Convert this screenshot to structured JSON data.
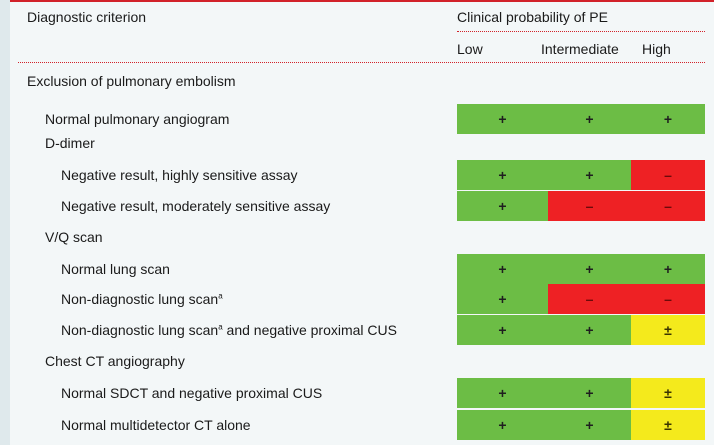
{
  "header": {
    "criterion_label": "Diagnostic criterion",
    "probability_label": "Clinical probability of PE",
    "columns": [
      "Low",
      "Intermediate",
      "High"
    ]
  },
  "colors": {
    "positive": "#6cbd45",
    "negative": "#ee2124",
    "equivocal": "#f4ea1c",
    "rule": "#d2222a"
  },
  "rows": [
    {
      "label": "Exclusion of pulmonary embolism",
      "indent": 0,
      "kind": "section"
    },
    {
      "label": "Normal pulmonary angiogram",
      "indent": 1,
      "kind": "data",
      "values": [
        "+",
        "+",
        "+"
      ],
      "colors": [
        "green",
        "green",
        "green"
      ]
    },
    {
      "label": "D-dimer",
      "indent": 1,
      "kind": "subsection"
    },
    {
      "label": "Negative result, highly sensitive assay",
      "indent": 2,
      "kind": "data",
      "values": [
        "+",
        "+",
        "–"
      ],
      "colors": [
        "green",
        "green",
        "red"
      ]
    },
    {
      "label": "Negative result, moderately sensitive assay",
      "indent": 2,
      "kind": "data",
      "values": [
        "+",
        "–",
        "–"
      ],
      "colors": [
        "green",
        "red",
        "red"
      ]
    },
    {
      "label": "V/Q scan",
      "indent": 1,
      "kind": "subsection"
    },
    {
      "label": "Normal lung scan",
      "indent": 2,
      "kind": "data",
      "values": [
        "+",
        "+",
        "+"
      ],
      "colors": [
        "green",
        "green",
        "green"
      ]
    },
    {
      "label": "Non-diagnostic lung scan",
      "sup": "a",
      "indent": 2,
      "kind": "data",
      "values": [
        "+",
        "–",
        "–"
      ],
      "colors": [
        "green",
        "red",
        "red"
      ]
    },
    {
      "label": "Non-diagnostic lung scan",
      "sup": "a",
      "label_suffix": " and negative proximal CUS",
      "indent": 2,
      "kind": "data",
      "values": [
        "+",
        "+",
        "±"
      ],
      "colors": [
        "green",
        "green",
        "yellow"
      ]
    },
    {
      "label": "Chest CT angiography",
      "indent": 1,
      "kind": "subsection"
    },
    {
      "label": "Normal SDCT and negative proximal CUS",
      "indent": 2,
      "kind": "data",
      "values": [
        "+",
        "+",
        "±"
      ],
      "colors": [
        "green",
        "green",
        "yellow"
      ]
    },
    {
      "label": "Normal multidetector CT alone",
      "indent": 2,
      "kind": "data",
      "values": [
        "+",
        "+",
        "±"
      ],
      "colors": [
        "green",
        "green",
        "yellow"
      ]
    }
  ]
}
